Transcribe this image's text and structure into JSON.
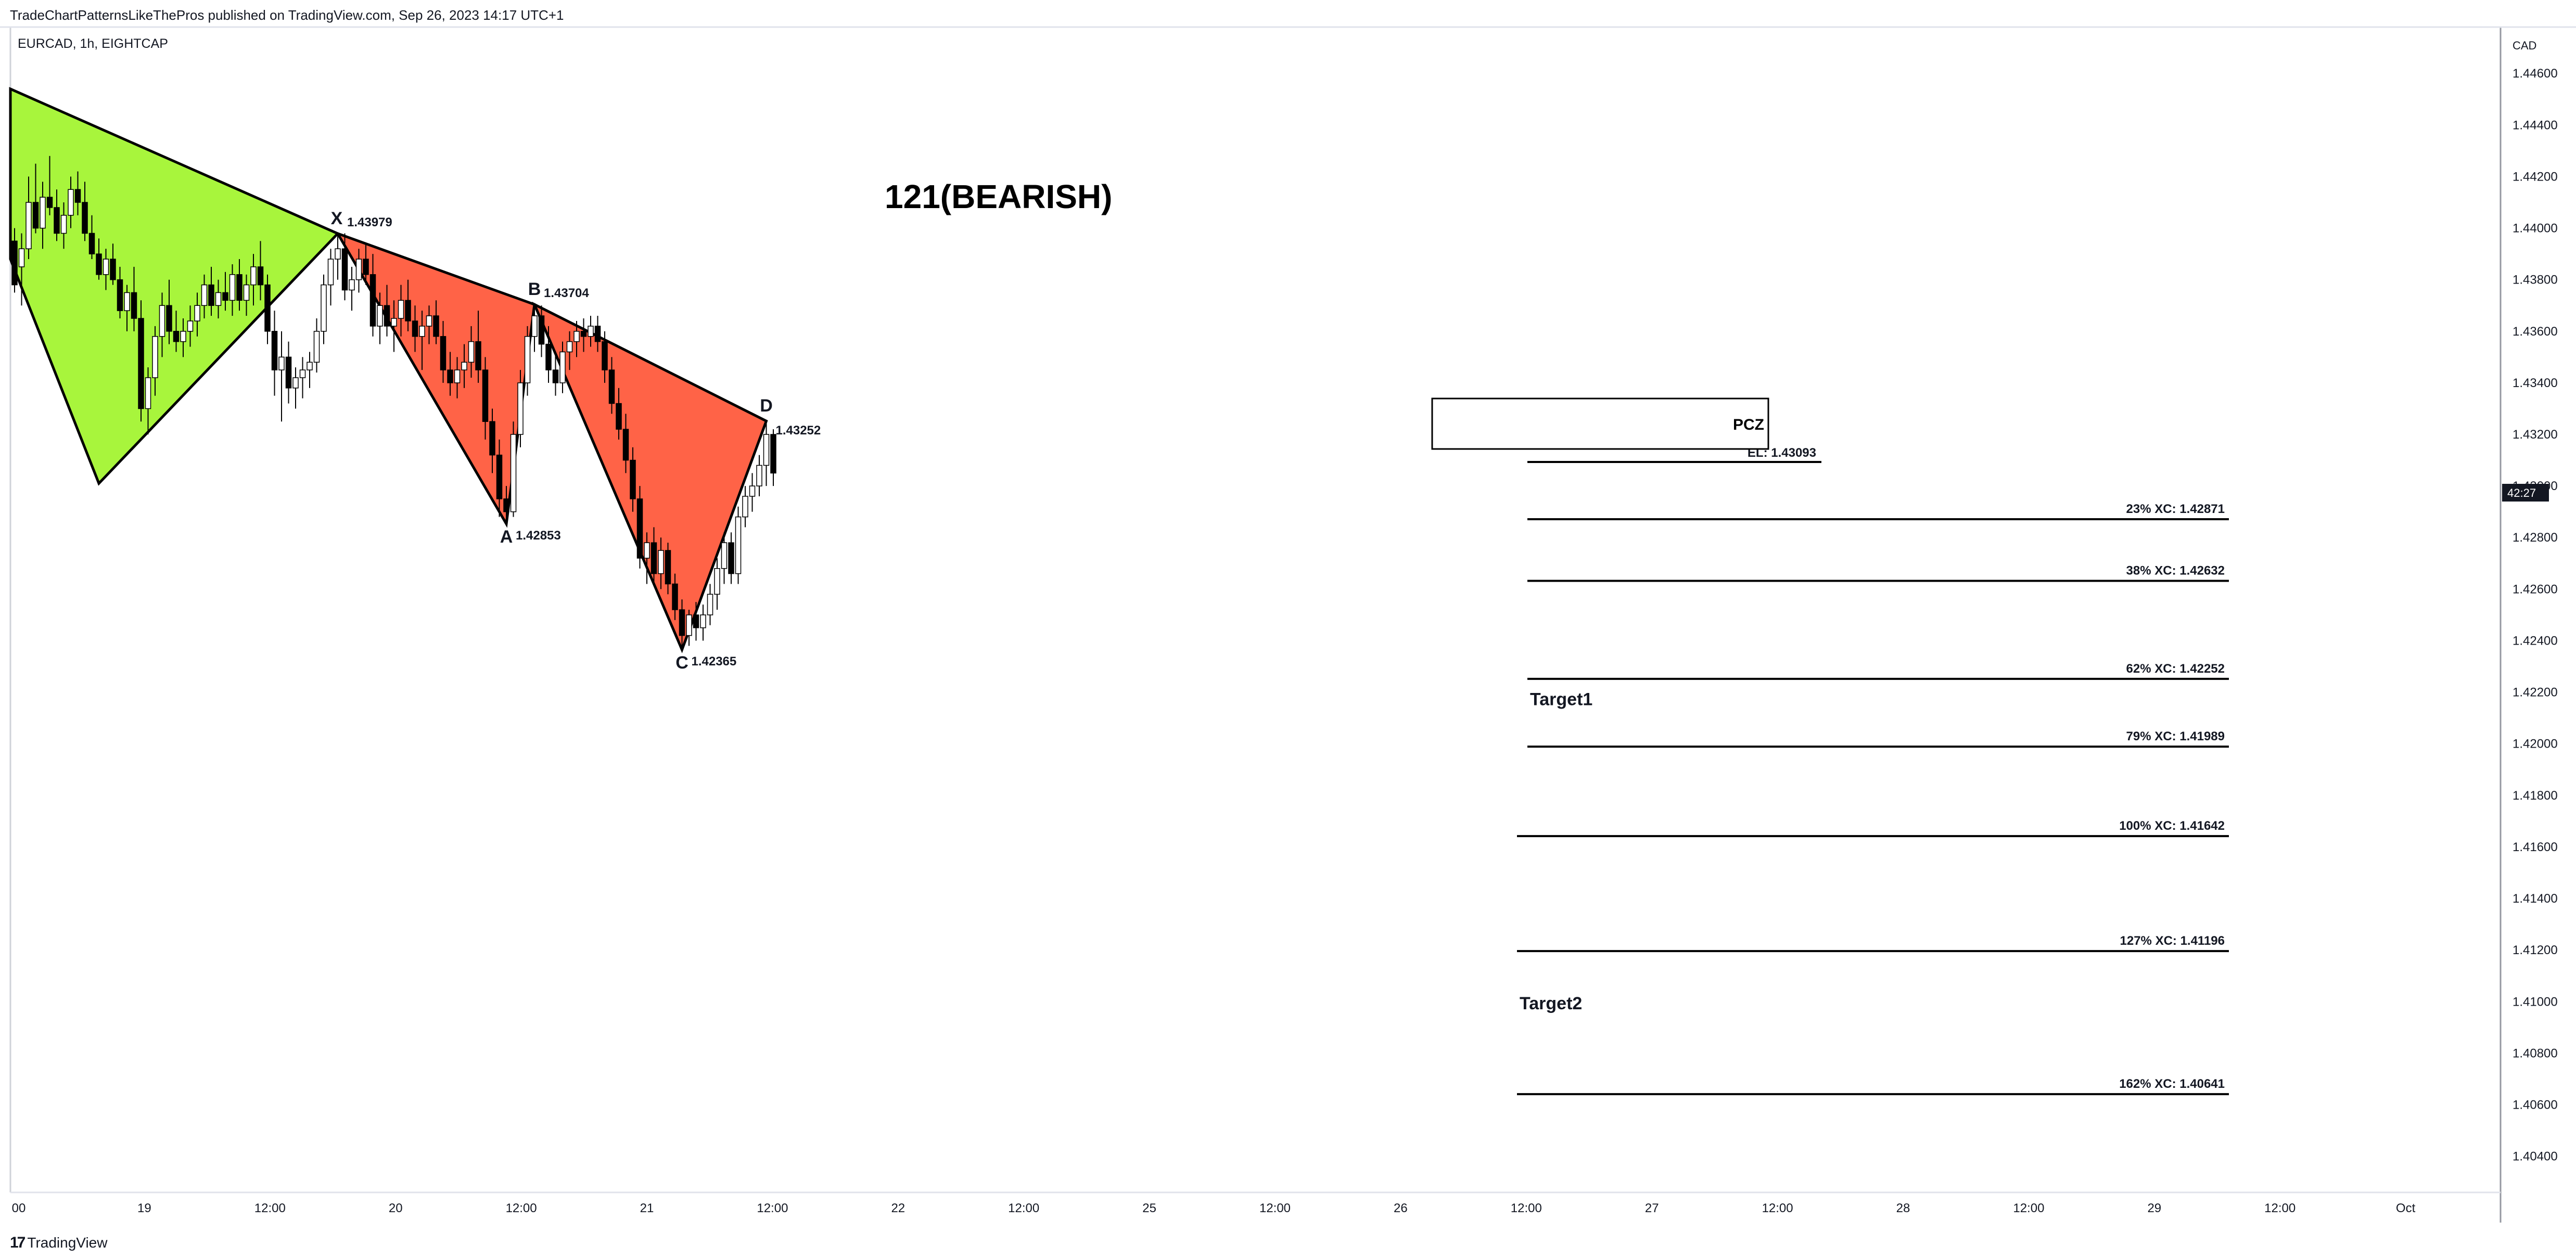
{
  "header": {
    "published_text": "TradeChartPatternsLikeThePros published on TradingView.com, Sep 26, 2023 14:17 UTC+1",
    "symbol_text": "EURCAD, 1h, EIGHTCAP"
  },
  "footer": {
    "logo_text": "TradingView"
  },
  "colors": {
    "up_candle": "#ffffff",
    "down_candle": "#000000",
    "green_fill": "#a8f53c",
    "red_fill": "#ff6347",
    "price_badge": "#131722"
  },
  "chart_data": {
    "type": "candlestick",
    "title": "121(BEARISH)",
    "currency_label": "CAD",
    "y_ticks": [
      "1.44600",
      "1.44400",
      "1.44200",
      "1.44000",
      "1.43800",
      "1.43600",
      "1.43400",
      "1.43200",
      "1.43000",
      "1.42800",
      "1.42600",
      "1.42400",
      "1.42200",
      "1.42000",
      "1.41800",
      "1.41600",
      "1.41400",
      "1.41200",
      "1.41000",
      "1.40800",
      "1.40600",
      "1.40400"
    ],
    "ylim": [
      1.4026,
      1.4478
    ],
    "x_ticks": [
      "00",
      "19",
      "12:00",
      "20",
      "12:00",
      "21",
      "12:00",
      "22",
      "12:00",
      "25",
      "12:00",
      "26",
      "12:00",
      "27",
      "12:00",
      "28",
      "12:00",
      "29",
      "12:00",
      "Oct"
    ],
    "price_badge_text": "42:27",
    "pattern_points": [
      {
        "name": "X",
        "price": 1.43979,
        "label": "1.43979"
      },
      {
        "name": "A",
        "price": 1.42853,
        "label": "1.42853"
      },
      {
        "name": "B",
        "price": 1.43704,
        "label": "1.43704"
      },
      {
        "name": "C",
        "price": 1.42365,
        "label": "1.42365"
      },
      {
        "name": "D",
        "price": 1.43252,
        "label": "1.43252"
      }
    ],
    "pcz_label": "PCZ",
    "entry_line": {
      "label": "EL: 1.43093",
      "price": 1.43093
    },
    "levels": [
      {
        "label": "23% XC: 1.42871",
        "price": 1.42871
      },
      {
        "label": "38% XC: 1.42632",
        "price": 1.42632
      },
      {
        "label": "62% XC: 1.42252",
        "price": 1.42252
      },
      {
        "label": "79% XC: 1.41989",
        "price": 1.41989
      },
      {
        "label": "100% XC: 1.41642",
        "price": 1.41642
      },
      {
        "label": "127% XC: 1.41196",
        "price": 1.41196
      },
      {
        "label": "162% XC: 1.40641",
        "price": 1.40641
      }
    ],
    "targets": [
      {
        "label": "Target1",
        "price": 1.4215
      },
      {
        "label": "Target2",
        "price": 1.4097
      }
    ],
    "candles": [
      [
        1.4395,
        1.44,
        1.4375,
        1.4378
      ],
      [
        1.4385,
        1.4398,
        1.437,
        1.4392
      ],
      [
        1.4392,
        1.442,
        1.4388,
        1.441
      ],
      [
        1.441,
        1.4425,
        1.4398,
        1.44
      ],
      [
        1.44,
        1.4418,
        1.4392,
        1.4412
      ],
      [
        1.4412,
        1.4428,
        1.4405,
        1.4408
      ],
      [
        1.4408,
        1.4415,
        1.4395,
        1.4398
      ],
      [
        1.4398,
        1.441,
        1.4392,
        1.4405
      ],
      [
        1.4405,
        1.442,
        1.44,
        1.4415
      ],
      [
        1.4415,
        1.4422,
        1.4405,
        1.441
      ],
      [
        1.441,
        1.4418,
        1.4395,
        1.4398
      ],
      [
        1.4398,
        1.4405,
        1.4388,
        1.439
      ],
      [
        1.439,
        1.4396,
        1.438,
        1.4382
      ],
      [
        1.4382,
        1.4392,
        1.4376,
        1.4388
      ],
      [
        1.4388,
        1.4394,
        1.4378,
        1.438
      ],
      [
        1.438,
        1.4385,
        1.4365,
        1.4368
      ],
      [
        1.4368,
        1.4378,
        1.436,
        1.4375
      ],
      [
        1.4375,
        1.4385,
        1.436,
        1.4365
      ],
      [
        1.4365,
        1.4372,
        1.4325,
        1.433
      ],
      [
        1.433,
        1.4346,
        1.432,
        1.4342
      ],
      [
        1.4342,
        1.4362,
        1.4335,
        1.4358
      ],
      [
        1.4358,
        1.4375,
        1.435,
        1.437
      ],
      [
        1.437,
        1.438,
        1.4355,
        1.436
      ],
      [
        1.436,
        1.4368,
        1.4352,
        1.4356
      ],
      [
        1.4356,
        1.4365,
        1.435,
        1.436
      ],
      [
        1.436,
        1.437,
        1.4354,
        1.4364
      ],
      [
        1.4364,
        1.4375,
        1.4358,
        1.437
      ],
      [
        1.437,
        1.4382,
        1.4365,
        1.4378
      ],
      [
        1.4378,
        1.4385,
        1.4366,
        1.437
      ],
      [
        1.437,
        1.438,
        1.4365,
        1.4375
      ],
      [
        1.4375,
        1.4383,
        1.4368,
        1.4372
      ],
      [
        1.4372,
        1.4386,
        1.4366,
        1.4382
      ],
      [
        1.4382,
        1.4388,
        1.4368,
        1.4372
      ],
      [
        1.4372,
        1.4382,
        1.4366,
        1.4378
      ],
      [
        1.4378,
        1.439,
        1.437,
        1.4385
      ],
      [
        1.4385,
        1.4395,
        1.4372,
        1.4378
      ],
      [
        1.4378,
        1.4382,
        1.4355,
        1.436
      ],
      [
        1.436,
        1.4368,
        1.4335,
        1.4345
      ],
      [
        1.4345,
        1.436,
        1.4325,
        1.435
      ],
      [
        1.435,
        1.4356,
        1.4332,
        1.4338
      ],
      [
        1.4338,
        1.4346,
        1.433,
        1.4342
      ],
      [
        1.4342,
        1.435,
        1.4334,
        1.4345
      ],
      [
        1.4345,
        1.4352,
        1.4338,
        1.4348
      ],
      [
        1.4348,
        1.4365,
        1.4344,
        1.436
      ],
      [
        1.436,
        1.4382,
        1.4355,
        1.4378
      ],
      [
        1.4378,
        1.4392,
        1.437,
        1.4388
      ],
      [
        1.4388,
        1.43979,
        1.438,
        1.4392
      ],
      [
        1.4392,
        1.4398,
        1.4372,
        1.4376
      ],
      [
        1.4376,
        1.4385,
        1.4368,
        1.438
      ],
      [
        1.438,
        1.4392,
        1.4375,
        1.4388
      ],
      [
        1.4388,
        1.4394,
        1.4378,
        1.4382
      ],
      [
        1.4382,
        1.439,
        1.4358,
        1.4362
      ],
      [
        1.4362,
        1.4375,
        1.4355,
        1.437
      ],
      [
        1.437,
        1.4378,
        1.4358,
        1.4362
      ],
      [
        1.4362,
        1.4372,
        1.4352,
        1.4365
      ],
      [
        1.4365,
        1.4378,
        1.4358,
        1.4372
      ],
      [
        1.4372,
        1.438,
        1.436,
        1.4364
      ],
      [
        1.4364,
        1.437,
        1.4352,
        1.4358
      ],
      [
        1.4358,
        1.4368,
        1.4345,
        1.4362
      ],
      [
        1.4362,
        1.437,
        1.4355,
        1.4366
      ],
      [
        1.4366,
        1.4372,
        1.4355,
        1.4358
      ],
      [
        1.4358,
        1.4364,
        1.434,
        1.4345
      ],
      [
        1.4345,
        1.4352,
        1.4335,
        1.434
      ],
      [
        1.434,
        1.435,
        1.4334,
        1.4345
      ],
      [
        1.4345,
        1.4355,
        1.4338,
        1.4348
      ],
      [
        1.4348,
        1.4362,
        1.4342,
        1.4356
      ],
      [
        1.4356,
        1.4368,
        1.434,
        1.4345
      ],
      [
        1.4345,
        1.435,
        1.4318,
        1.4325
      ],
      [
        1.4325,
        1.433,
        1.4305,
        1.4312
      ],
      [
        1.4312,
        1.4318,
        1.4288,
        1.4295
      ],
      [
        1.4295,
        1.43,
        1.42853,
        1.429
      ],
      [
        1.429,
        1.4325,
        1.4288,
        1.432
      ],
      [
        1.432,
        1.4345,
        1.4315,
        1.434
      ],
      [
        1.434,
        1.4362,
        1.4335,
        1.4358
      ],
      [
        1.4358,
        1.43704,
        1.4352,
        1.4366
      ],
      [
        1.4366,
        1.437,
        1.435,
        1.4355
      ],
      [
        1.4355,
        1.4362,
        1.434,
        1.4345
      ],
      [
        1.4345,
        1.4352,
        1.4335,
        1.434
      ],
      [
        1.434,
        1.4356,
        1.4336,
        1.4352
      ],
      [
        1.4352,
        1.436,
        1.4345,
        1.4356
      ],
      [
        1.4356,
        1.4364,
        1.435,
        1.436
      ],
      [
        1.436,
        1.4365,
        1.4352,
        1.4358
      ],
      [
        1.4358,
        1.4366,
        1.4354,
        1.4362
      ],
      [
        1.4362,
        1.4366,
        1.4352,
        1.4356
      ],
      [
        1.4356,
        1.436,
        1.434,
        1.4345
      ],
      [
        1.4345,
        1.435,
        1.4328,
        1.4332
      ],
      [
        1.4332,
        1.4338,
        1.4318,
        1.4322
      ],
      [
        1.4322,
        1.4328,
        1.4305,
        1.431
      ],
      [
        1.431,
        1.4315,
        1.429,
        1.4295
      ],
      [
        1.4295,
        1.43,
        1.4268,
        1.4272
      ],
      [
        1.4272,
        1.4282,
        1.4262,
        1.4278
      ],
      [
        1.4278,
        1.4284,
        1.4262,
        1.4266
      ],
      [
        1.4266,
        1.428,
        1.426,
        1.4275
      ],
      [
        1.4275,
        1.4278,
        1.4258,
        1.4262
      ],
      [
        1.4262,
        1.4266,
        1.4248,
        1.4252
      ],
      [
        1.4252,
        1.4256,
        1.42365,
        1.4242
      ],
      [
        1.4242,
        1.4252,
        1.4238,
        1.425
      ],
      [
        1.425,
        1.4255,
        1.424,
        1.4245
      ],
      [
        1.4245,
        1.4254,
        1.424,
        1.425
      ],
      [
        1.425,
        1.4262,
        1.4246,
        1.4258
      ],
      [
        1.4258,
        1.4272,
        1.4252,
        1.4268
      ],
      [
        1.4268,
        1.4282,
        1.4262,
        1.4278
      ],
      [
        1.4278,
        1.4282,
        1.4262,
        1.4266
      ],
      [
        1.4266,
        1.4292,
        1.4262,
        1.4288
      ],
      [
        1.4288,
        1.43,
        1.4284,
        1.4296
      ],
      [
        1.4296,
        1.4305,
        1.429,
        1.43
      ],
      [
        1.43,
        1.4312,
        1.4296,
        1.4308
      ],
      [
        1.4308,
        1.43252,
        1.43,
        1.432
      ],
      [
        1.432,
        1.4322,
        1.43,
        1.4305
      ]
    ]
  }
}
